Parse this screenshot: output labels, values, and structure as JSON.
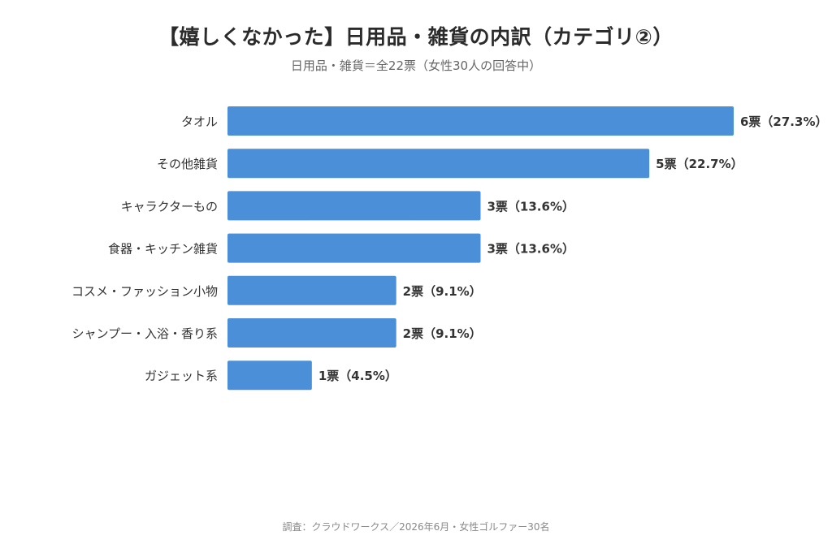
{
  "colors": {
    "bar": "#4a8fd8",
    "label": "#333333",
    "value": "#333333"
  },
  "chart_data": {
    "type": "bar",
    "orientation": "horizontal",
    "title": "【嬉しくなかった】日用品・雑貨の内訳（カテゴリ②）",
    "subtitle": "日用品・雑貨＝全22票（女性30人の回答中）",
    "categories": [
      "タオル",
      "その他雑貨",
      "キャラクターもの",
      "食器・キッチン雑貨",
      "コスメ・ファッション小物",
      "シャンプー・入浴・香り系",
      "ガジェット系"
    ],
    "values": [
      6,
      5,
      3,
      3,
      2,
      2,
      1
    ],
    "value_labels": [
      "6票（27.3%）",
      "5票（22.7%）",
      "3票（13.6%）",
      "3票（13.6%）",
      "2票（9.1%）",
      "2票（9.1%）",
      "1票（4.5%）"
    ],
    "xlim": [
      0,
      6
    ],
    "grid": false,
    "legend": "none"
  },
  "footer": "調査：クラウドワークス／2026年6月・女性ゴルファー30名"
}
